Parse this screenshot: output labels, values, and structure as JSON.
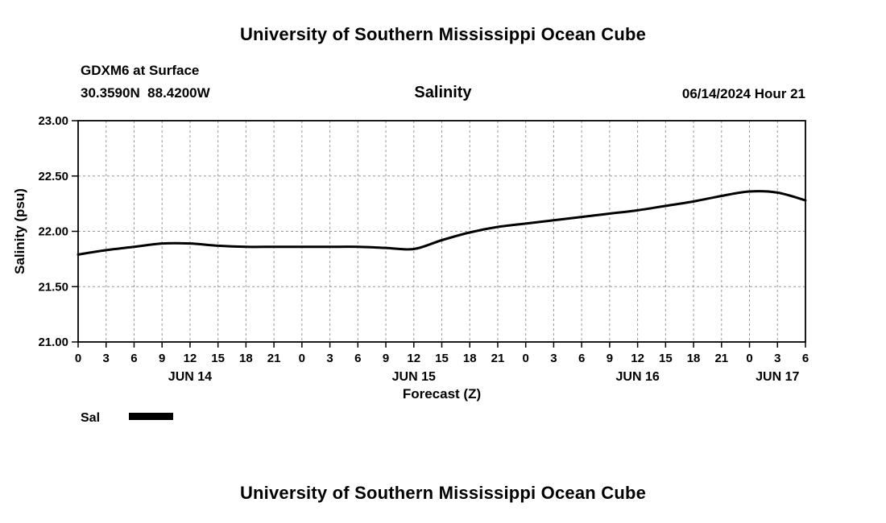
{
  "page": {
    "top_title": "University of Southern Mississippi Ocean Cube",
    "bottom_title": "University of Southern Mississippi Ocean Cube"
  },
  "header": {
    "station": "GDXM6 at Surface",
    "coordinates": "30.3590N  88.4200W",
    "chart_title": "Salinity",
    "valid_time": "06/14/2024 Hour 21"
  },
  "legend": {
    "label": "Sal",
    "swatch_color": "#000000"
  },
  "chart_data": {
    "type": "line",
    "title": "Salinity",
    "xlabel": "Forecast (Z)",
    "ylabel": "Salinity (psu)",
    "ylim": [
      21.0,
      23.0
    ],
    "yticks": [
      23.0,
      22.5,
      22.0,
      21.5,
      21.0
    ],
    "ytick_labels": [
      "23.00",
      "22.50",
      "22.00",
      "21.50",
      "21.00"
    ],
    "xlim_hours": [
      0,
      78
    ],
    "xtick_hours": [
      0,
      3,
      6,
      9,
      12,
      15,
      18,
      21,
      24,
      27,
      30,
      33,
      36,
      39,
      42,
      45,
      48,
      51,
      54,
      57,
      60,
      63,
      66,
      69,
      72,
      75,
      78
    ],
    "xtick_labels": [
      "0",
      "3",
      "6",
      "9",
      "12",
      "15",
      "18",
      "21",
      "0",
      "3",
      "6",
      "9",
      "12",
      "15",
      "18",
      "21",
      "0",
      "3",
      "6",
      "9",
      "12",
      "15",
      "18",
      "21",
      "0",
      "3",
      "6"
    ],
    "day_labels": [
      {
        "label": "JUN 14",
        "hour": 12
      },
      {
        "label": "JUN 15",
        "hour": 36
      },
      {
        "label": "JUN 16",
        "hour": 60
      },
      {
        "label": "JUN 17",
        "hour": 75
      }
    ],
    "grid": "dashed",
    "legend_position": "bottom-left",
    "series": [
      {
        "name": "Sal",
        "color": "#000000",
        "x_hours": [
          0,
          3,
          6,
          9,
          12,
          15,
          18,
          21,
          24,
          27,
          30,
          33,
          36,
          39,
          42,
          45,
          48,
          51,
          54,
          57,
          60,
          63,
          66,
          69,
          72,
          75,
          78
        ],
        "values": [
          21.79,
          21.83,
          21.86,
          21.89,
          21.89,
          21.87,
          21.86,
          21.86,
          21.86,
          21.86,
          21.86,
          21.85,
          21.84,
          21.92,
          21.99,
          22.04,
          22.07,
          22.1,
          22.13,
          22.16,
          22.19,
          22.23,
          22.27,
          22.32,
          22.36,
          22.35,
          22.28
        ]
      }
    ]
  }
}
